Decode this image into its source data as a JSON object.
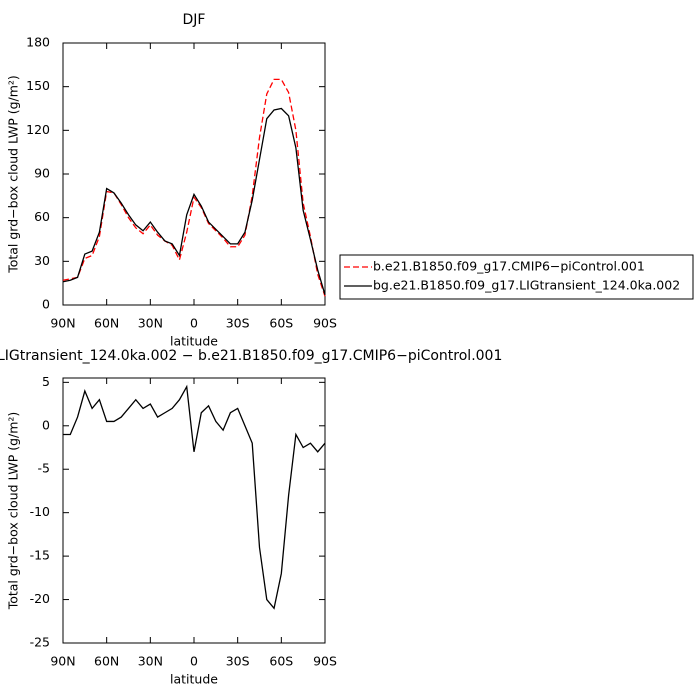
{
  "chart_data": [
    {
      "type": "line",
      "title": "DJF",
      "x_label": "latitude",
      "y_label": "Total grd−box cloud LWP (g/m²)",
      "x": [
        90,
        85,
        80,
        75,
        70,
        65,
        60,
        55,
        50,
        45,
        40,
        35,
        30,
        25,
        20,
        15,
        10,
        5,
        0,
        -5,
        -10,
        -15,
        -20,
        -25,
        -30,
        -35,
        -40,
        -45,
        -50,
        -55,
        -60,
        -65,
        -70,
        -75,
        -80,
        -85,
        -90
      ],
      "series": [
        {
          "name": "b.e21.B1850.f09_g17.CMIP6−piControl.001",
          "color": "#ff0000",
          "dash": true,
          "values": [
            17,
            18,
            19,
            32,
            34,
            47,
            78,
            77,
            69,
            60,
            53,
            49,
            55,
            48,
            44,
            41,
            31,
            50,
            74,
            67,
            56,
            51,
            46,
            40,
            40,
            48,
            75,
            115,
            145,
            155,
            155,
            146,
            120,
            70,
            47,
            21,
            6
          ]
        },
        {
          "name": "bg.e21.B1850.f09_g17.LIGtransient_124.0ka.002",
          "color": "#000000",
          "dash": false,
          "values": [
            16,
            17,
            19,
            35,
            37,
            50,
            80,
            77,
            70,
            62,
            55,
            51,
            57,
            50,
            44,
            42,
            34,
            62,
            76,
            68,
            57,
            52,
            47,
            42,
            42,
            50,
            72,
            100,
            128,
            134,
            135,
            130,
            108,
            65,
            45,
            24,
            7
          ]
        }
      ],
      "xlim": [
        90,
        -90
      ],
      "xticks": [
        {
          "value": 90,
          "label": "90N"
        },
        {
          "value": 60,
          "label": "60N"
        },
        {
          "value": 30,
          "label": "30N"
        },
        0,
        {
          "value": -30,
          "label": "30S"
        },
        {
          "value": -60,
          "label": "60S"
        },
        {
          "value": -90,
          "label": "90S"
        }
      ],
      "ylim": [
        0,
        180
      ],
      "yticks": [
        0,
        30,
        60,
        90,
        120,
        150,
        180
      ],
      "legend": "right"
    },
    {
      "type": "line",
      "title": "LIGtransient_124.0ka.002 − b.e21.B1850.f09_g17.CMIP6−piControl.001",
      "x_label": "latitude",
      "y_label": "Total grd−box cloud LWP (g/m²)",
      "x": [
        90,
        85,
        80,
        75,
        70,
        65,
        60,
        55,
        50,
        45,
        40,
        35,
        30,
        25,
        20,
        15,
        10,
        5,
        0,
        -5,
        -10,
        -15,
        -20,
        -25,
        -30,
        -35,
        -40,
        -45,
        -50,
        -55,
        -60,
        -65,
        -70,
        -75,
        -80,
        -85,
        -90
      ],
      "series": [
        {
          "color": "#000000",
          "dash": false,
          "values": [
            -1,
            -1,
            1,
            4,
            2,
            3,
            0.5,
            0.5,
            1,
            2,
            3,
            2,
            2.5,
            1,
            1.5,
            2,
            3,
            4.5,
            -3,
            1.5,
            2.3,
            0.5,
            -0.5,
            1.5,
            2,
            0,
            -2,
            -14,
            -20,
            -21,
            -17,
            -8,
            -1,
            -2.5,
            -2,
            -3,
            -2
          ]
        }
      ],
      "xlim": [
        90,
        -90
      ],
      "xticks": [
        {
          "value": 90,
          "label": "90N"
        },
        {
          "value": 60,
          "label": "60N"
        },
        {
          "value": 30,
          "label": "30N"
        },
        0,
        {
          "value": -30,
          "label": "30S"
        },
        {
          "value": -60,
          "label": "60S"
        },
        {
          "value": -90,
          "label": "90S"
        }
      ],
      "ylim": [
        -25,
        5.5
      ],
      "yticks": [
        -25,
        -20,
        -15,
        -10,
        -5,
        0,
        5
      ]
    }
  ]
}
